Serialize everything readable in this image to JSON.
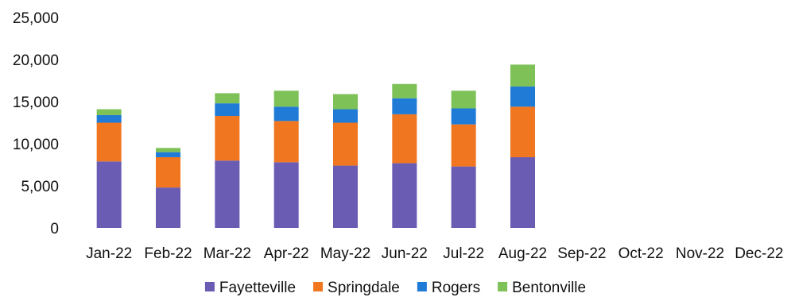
{
  "chart_data": {
    "type": "bar",
    "stacked": true,
    "categories": [
      "Jan-22",
      "Feb-22",
      "Mar-22",
      "Apr-22",
      "May-22",
      "Jun-22",
      "Jul-22",
      "Aug-22",
      "Sep-22",
      "Oct-22",
      "Nov-22",
      "Dec-22"
    ],
    "series": [
      {
        "name": "Fayetteville",
        "color": "#6a5bb3",
        "values": [
          7900,
          4800,
          8000,
          7800,
          7400,
          7700,
          7300,
          8400,
          null,
          null,
          null,
          null
        ]
      },
      {
        "name": "Springdale",
        "color": "#f0761f",
        "values": [
          4600,
          3600,
          5300,
          4900,
          5100,
          5800,
          5000,
          6000,
          null,
          null,
          null,
          null
        ]
      },
      {
        "name": "Rogers",
        "color": "#1f7bd6",
        "values": [
          900,
          600,
          1500,
          1700,
          1600,
          1900,
          1900,
          2400,
          null,
          null,
          null,
          null
        ]
      },
      {
        "name": "Bentonville",
        "color": "#7dc157",
        "values": [
          700,
          500,
          1200,
          1900,
          1800,
          1700,
          2100,
          2600,
          null,
          null,
          null,
          null
        ]
      }
    ],
    "yticks": [
      "0",
      "5,000",
      "10,000",
      "15,000",
      "20,000",
      "25,000"
    ],
    "ylim": [
      0,
      25000
    ],
    "legend_position": "bottom",
    "grid": false
  }
}
